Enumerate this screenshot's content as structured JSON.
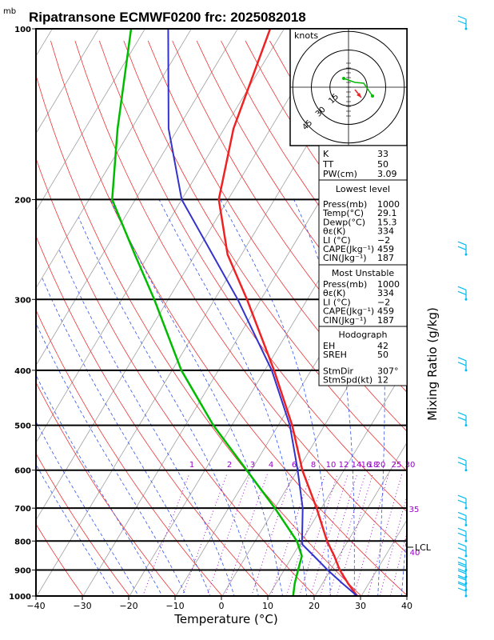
{
  "title": "Ripatransone ECMWF0200 frc: 2025082018",
  "y_unit": "mb",
  "chart_data": {
    "type": "skew-t",
    "xlabel": "Temperature (°C)",
    "right_label": "Mixing Ratio (g/kg)",
    "x_ticks": [
      -40,
      -30,
      -20,
      -10,
      0,
      10,
      20,
      30,
      40
    ],
    "x_range": [
      -40,
      40
    ],
    "pressure_range": [
      1000,
      100
    ],
    "pressure_ticks": [
      1000,
      900,
      800,
      700,
      600,
      500,
      400,
      300,
      200,
      100
    ],
    "mixing_ratio_labels": [
      "1",
      "2",
      "3",
      "4",
      "6",
      "8",
      "10",
      "12",
      "14",
      "16",
      "18",
      "20",
      "25",
      "30",
      "35",
      "40"
    ],
    "temperature_profile": [
      {
        "p": 1000,
        "t": 29.1
      },
      {
        "p": 950,
        "t": 25.5
      },
      {
        "p": 900,
        "t": 22
      },
      {
        "p": 850,
        "t": 19
      },
      {
        "p": 800,
        "t": 15.5
      },
      {
        "p": 700,
        "t": 9
      },
      {
        "p": 600,
        "t": 1
      },
      {
        "p": 500,
        "t": -7
      },
      {
        "p": 400,
        "t": -18
      },
      {
        "p": 300,
        "t": -33
      },
      {
        "p": 250,
        "t": -43
      },
      {
        "p": 200,
        "t": -52
      },
      {
        "p": 150,
        "t": -58
      },
      {
        "p": 100,
        "t": -63
      }
    ],
    "dewpoint_profile": [
      {
        "p": 1000,
        "t": 15.3
      },
      {
        "p": 950,
        "t": 14
      },
      {
        "p": 900,
        "t": 13
      },
      {
        "p": 850,
        "t": 12
      },
      {
        "p": 800,
        "t": 9
      },
      {
        "p": 700,
        "t": 0
      },
      {
        "p": 600,
        "t": -11
      },
      {
        "p": 500,
        "t": -24
      },
      {
        "p": 400,
        "t": -38
      },
      {
        "p": 300,
        "t": -53
      },
      {
        "p": 250,
        "t": -63
      },
      {
        "p": 200,
        "t": -75
      },
      {
        "p": 150,
        "t": -83
      },
      {
        "p": 100,
        "t": -93
      }
    ],
    "parcel_profile": [
      {
        "p": 1000,
        "t": 29.1
      },
      {
        "p": 950,
        "t": 24.3
      },
      {
        "p": 900,
        "t": 19.4
      },
      {
        "p": 850,
        "t": 14.6
      },
      {
        "p": 810,
        "t": 10.5
      },
      {
        "p": 700,
        "t": 6
      },
      {
        "p": 600,
        "t": 0
      },
      {
        "p": 500,
        "t": -7.5
      },
      {
        "p": 400,
        "t": -18.5
      },
      {
        "p": 300,
        "t": -35
      },
      {
        "p": 200,
        "t": -60
      },
      {
        "p": 150,
        "t": -72
      },
      {
        "p": 100,
        "t": -85
      }
    ],
    "lcl_label": "LCL",
    "lcl_pressure": 810,
    "hodograph": {
      "title": "knots",
      "ring_labels": [
        "15",
        "30",
        "45"
      ],
      "ring_values": [
        15,
        30,
        45
      ]
    },
    "wind_barbs_pressure": [
      1000,
      975,
      950,
      925,
      900,
      850,
      800,
      750,
      700,
      600,
      500,
      400,
      300,
      250,
      100
    ],
    "wind_barb_color": "#00bbee",
    "temperature_color": "#ee2222",
    "dewpoint_color": "#00bb00",
    "parcel_color": "#3333cc",
    "mixing_ratio_color": "#9900cc"
  },
  "indices": {
    "top": [
      {
        "label": "K",
        "value": "33"
      },
      {
        "label": "TT",
        "value": "50"
      },
      {
        "label": "PW(cm)",
        "value": "3.09"
      }
    ],
    "lowest_level": {
      "header": "Lowest level",
      "rows": [
        {
          "label": "Press(mb)",
          "value": "1000"
        },
        {
          "label": "Temp(°C)",
          "value": "29.1"
        },
        {
          "label": "Dewp(°C)",
          "value": "15.3"
        },
        {
          "label": "θε(K)",
          "value": "334"
        },
        {
          "label": "LI (°C)",
          "value": "−2"
        },
        {
          "label": "CAPE(Jkg⁻¹)",
          "value": "459"
        },
        {
          "label": "CIN(Jkg⁻¹)",
          "value": "187"
        }
      ]
    },
    "most_unstable": {
      "header": "Most Unstable",
      "rows": [
        {
          "label": "Press(mb)",
          "value": "1000"
        },
        {
          "label": "θε(K)",
          "value": "334"
        },
        {
          "label": "LI (°C)",
          "value": "−2"
        },
        {
          "label": "CAPE(Jkg⁻¹)",
          "value": "459"
        },
        {
          "label": "CIN(Jkg⁻¹)",
          "value": "187"
        }
      ]
    },
    "hodograph_block": {
      "header": "Hodograph",
      "rows": [
        {
          "label": "EH",
          "value": "42"
        },
        {
          "label": "SREH",
          "value": "50"
        },
        {
          "label": "StmDir",
          "value": "307°"
        },
        {
          "label": "StmSpd(kt)",
          "value": "12"
        }
      ]
    }
  }
}
